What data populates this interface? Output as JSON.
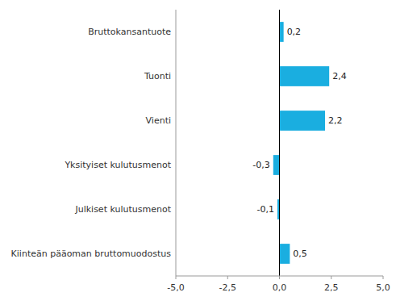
{
  "chart_data": {
    "type": "bar",
    "orientation": "horizontal",
    "categories": [
      "Kiinteän pääoman bruttomuodostus",
      "Julkiset kulutusmenot",
      "Yksityiset kulutusmenot",
      "Vienti",
      "Tuonti",
      "Bruttokansantuote"
    ],
    "values": [
      0.5,
      -0.1,
      -0.3,
      2.2,
      2.4,
      0.2
    ],
    "value_labels": [
      "0,5",
      "-0,1",
      "-0,3",
      "2,2",
      "2,4",
      "0,2"
    ],
    "data_labels": true,
    "color": "#1aaee0",
    "xlim": [
      -5.0,
      5.0
    ],
    "xticks": [
      {
        "value": -5.0,
        "label": "-5,0"
      },
      {
        "value": -2.5,
        "label": "-2,5"
      },
      {
        "value": 0.0,
        "label": "0,0"
      },
      {
        "value": 2.5,
        "label": "2,5"
      },
      {
        "value": 5.0,
        "label": "5,0"
      }
    ],
    "grid": false
  }
}
